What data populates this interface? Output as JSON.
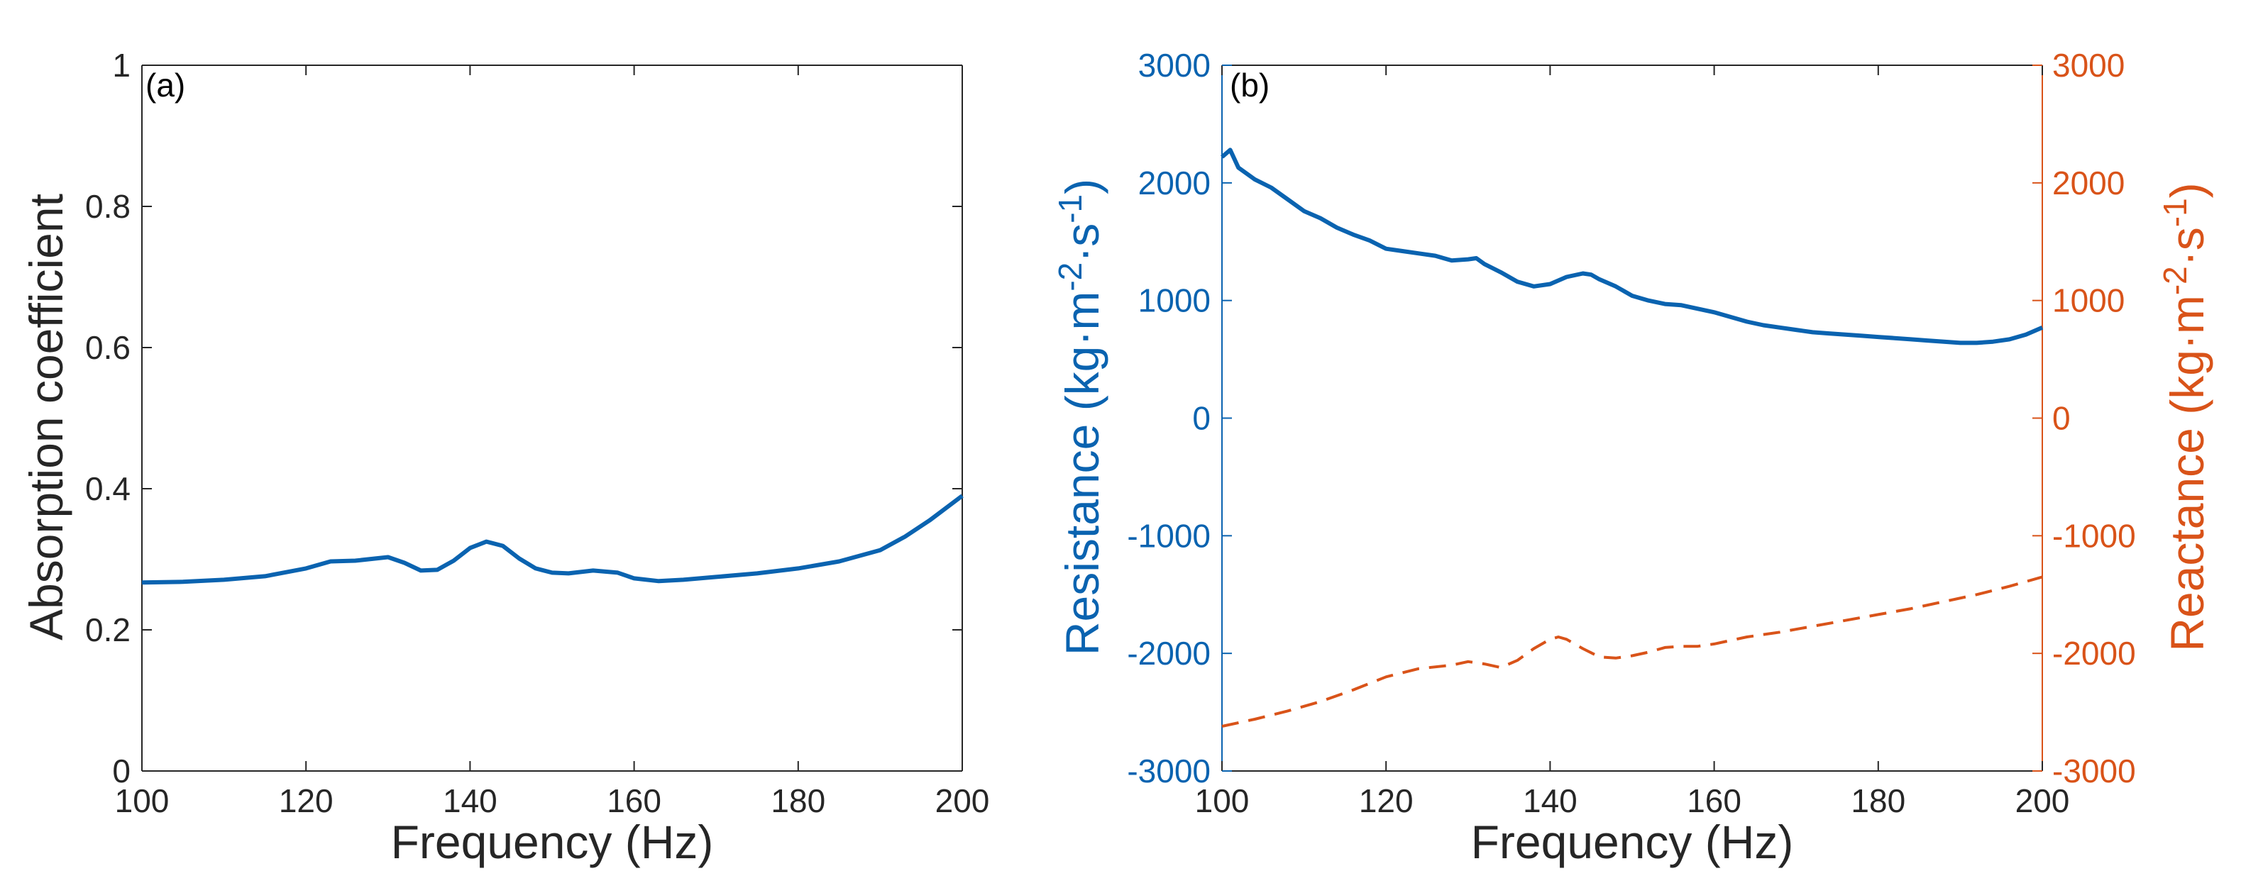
{
  "colors": {
    "resistance": "#0a63b0",
    "reactance": "#d95319",
    "absorption": "#0a63b0",
    "axis": "#262626"
  },
  "chart_data": [
    {
      "panel": "(a)",
      "type": "line",
      "xlabel": "Frequency (Hz)",
      "ylabel": "Absorption coefficient",
      "xlim": [
        100,
        200
      ],
      "ylim": [
        0,
        1
      ],
      "xticks": [
        100,
        120,
        140,
        160,
        180,
        200
      ],
      "yticks": [
        0,
        0.2,
        0.4,
        0.6,
        0.8,
        1
      ],
      "xtick_labels": [
        "100",
        "120",
        "140",
        "160",
        "180",
        "200"
      ],
      "ytick_labels": [
        "0",
        "0.2",
        "0.4",
        "0.6",
        "0.8",
        "1"
      ],
      "grid": false,
      "series": [
        {
          "style": "solid",
          "color": "#0a63b0",
          "x": [
            100,
            105,
            110,
            115,
            120,
            123,
            126,
            130,
            132,
            134,
            136,
            138,
            140,
            142,
            144,
            146,
            148,
            150,
            152,
            155,
            158,
            160,
            163,
            166,
            170,
            175,
            180,
            185,
            190,
            193,
            196,
            200
          ],
          "y": [
            0.267,
            0.268,
            0.271,
            0.276,
            0.287,
            0.297,
            0.298,
            0.303,
            0.295,
            0.284,
            0.285,
            0.298,
            0.316,
            0.325,
            0.319,
            0.301,
            0.287,
            0.281,
            0.28,
            0.284,
            0.281,
            0.273,
            0.269,
            0.271,
            0.275,
            0.28,
            0.287,
            0.297,
            0.313,
            0.332,
            0.355,
            0.39
          ]
        }
      ]
    },
    {
      "panel": "(b)",
      "type": "line",
      "xlabel": "Frequency (Hz)",
      "ylabel_left": "Resistance (kg·m⁻²·s⁻¹)",
      "ylabel_right": "Reactance (kg·m⁻²·s⁻¹)",
      "xlim": [
        100,
        200
      ],
      "ylim_left": [
        -3000,
        3000
      ],
      "ylim_right": [
        -3000,
        3000
      ],
      "xticks": [
        100,
        120,
        140,
        160,
        180,
        200
      ],
      "yticks": [
        -3000,
        -2000,
        -1000,
        0,
        1000,
        2000,
        3000
      ],
      "xtick_labels": [
        "100",
        "120",
        "140",
        "160",
        "180",
        "200"
      ],
      "ytick_labels": [
        "-3000",
        "-2000",
        "-1000",
        "0",
        "1000",
        "2000",
        "3000"
      ],
      "grid": false,
      "series": [
        {
          "axis": "left",
          "style": "solid",
          "color": "#0a63b0",
          "x": [
            100,
            101,
            102,
            104,
            106,
            108,
            110,
            112,
            114,
            116,
            118,
            120,
            122,
            124,
            126,
            128,
            130,
            131,
            132,
            134,
            136,
            138,
            140,
            142,
            144,
            145,
            146,
            148,
            150,
            152,
            154,
            156,
            158,
            160,
            162,
            164,
            166,
            168,
            170,
            172,
            174,
            176,
            178,
            180,
            182,
            184,
            186,
            188,
            190,
            192,
            194,
            196,
            198,
            200
          ],
          "y": [
            2220,
            2280,
            2130,
            2030,
            1960,
            1860,
            1760,
            1700,
            1620,
            1560,
            1510,
            1440,
            1420,
            1400,
            1380,
            1340,
            1350,
            1360,
            1310,
            1240,
            1160,
            1120,
            1140,
            1200,
            1230,
            1220,
            1180,
            1120,
            1040,
            1000,
            970,
            960,
            930,
            900,
            860,
            820,
            790,
            770,
            750,
            730,
            720,
            710,
            700,
            690,
            680,
            670,
            660,
            650,
            640,
            640,
            650,
            670,
            710,
            770
          ]
        },
        {
          "axis": "right",
          "style": "dashed",
          "color": "#d95319",
          "x": [
            100,
            104,
            108,
            112,
            116,
            120,
            124,
            128,
            130,
            132,
            134,
            136,
            138,
            140,
            141,
            142,
            144,
            146,
            148,
            150,
            152,
            154,
            156,
            158,
            160,
            164,
            168,
            172,
            176,
            180,
            184,
            188,
            192,
            196,
            200
          ],
          "y": [
            -2620,
            -2560,
            -2490,
            -2410,
            -2310,
            -2200,
            -2130,
            -2100,
            -2070,
            -2090,
            -2120,
            -2060,
            -1960,
            -1880,
            -1860,
            -1880,
            -1960,
            -2030,
            -2040,
            -2020,
            -1990,
            -1950,
            -1940,
            -1940,
            -1920,
            -1860,
            -1820,
            -1770,
            -1720,
            -1670,
            -1620,
            -1560,
            -1500,
            -1430,
            -1350
          ]
        }
      ]
    }
  ]
}
